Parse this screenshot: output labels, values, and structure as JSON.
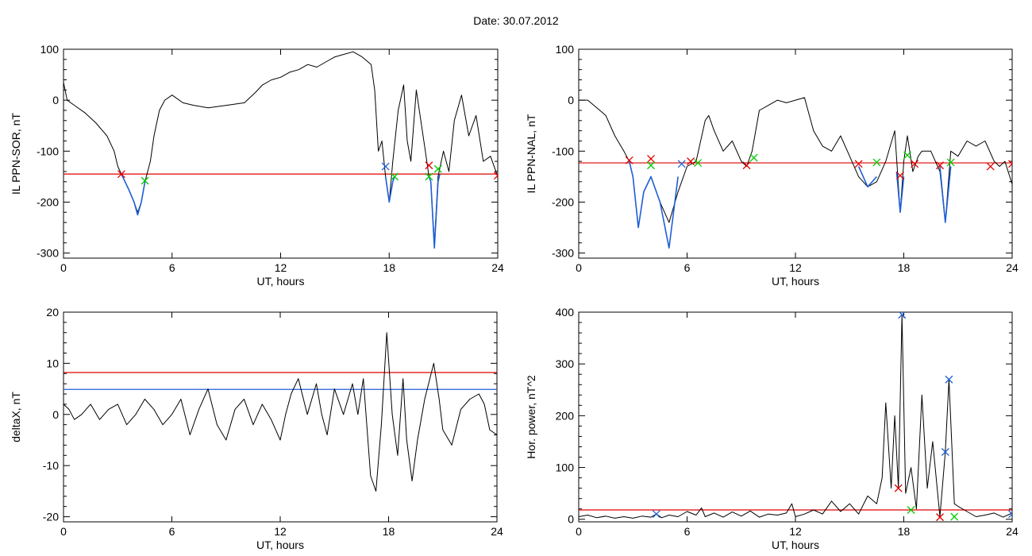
{
  "page_title": "Date:  30.07.2012",
  "chart_data": [
    {
      "type": "line",
      "id": "sor",
      "xlabel": "UT, hours",
      "ylabel": "IL PPN-SOR, nT",
      "xlim": [
        0,
        24
      ],
      "ylim": [
        -310,
        100
      ],
      "xticks": [
        0,
        6,
        12,
        18,
        24
      ],
      "yticks": [
        -300,
        -200,
        -100,
        0,
        100
      ],
      "grid": false,
      "series": [
        {
          "color": "#000000",
          "x": [
            0,
            0.2,
            0.6,
            1.2,
            1.8,
            2.4,
            2.8,
            3.0,
            3.2,
            3.6,
            3.9,
            4.1,
            4.3,
            4.5,
            4.8,
            5.0,
            5.3,
            5.6,
            6.0,
            6.6,
            7.2,
            8.0,
            9.0,
            10.0,
            10.6,
            11.0,
            11.5,
            12.0,
            12.5,
            13.0,
            13.5,
            14.0,
            14.5,
            15.0,
            15.5,
            16.0,
            16.5,
            17.0,
            17.2,
            17.4,
            17.6,
            17.8,
            18.0,
            18.2,
            18.5,
            18.8,
            19.0,
            19.2,
            19.5,
            20.0,
            20.2,
            20.3,
            20.5,
            20.7,
            21.0,
            21.3,
            21.6,
            22.0,
            22.4,
            22.8,
            23.2,
            23.6,
            24.0
          ],
          "y": [
            35,
            0,
            -10,
            -25,
            -45,
            -70,
            -100,
            -130,
            -145,
            -175,
            -200,
            -220,
            -200,
            -160,
            -120,
            -70,
            -20,
            0,
            10,
            -5,
            -10,
            -15,
            -10,
            -5,
            15,
            30,
            40,
            45,
            55,
            60,
            70,
            65,
            75,
            85,
            90,
            95,
            85,
            70,
            20,
            -100,
            -80,
            -150,
            -200,
            -120,
            -20,
            30,
            -80,
            -120,
            20,
            -100,
            -150,
            -160,
            -280,
            -150,
            -100,
            -140,
            -40,
            10,
            -70,
            -30,
            -120,
            -110,
            -150
          ]
        },
        {
          "color": "#1f5fd6",
          "x": [
            3.2,
            3.6,
            3.9,
            4.1,
            4.3,
            4.5
          ],
          "y": [
            -145,
            -175,
            -200,
            -225,
            -200,
            -160
          ]
        },
        {
          "color": "#1f5fd6",
          "x": [
            17.8,
            18.0,
            18.2,
            18.3
          ],
          "y": [
            -150,
            -200,
            -160,
            -150
          ]
        },
        {
          "color": "#1f5fd6",
          "x": [
            20.2,
            20.3,
            20.5,
            20.7,
            20.8
          ],
          "y": [
            -150,
            -160,
            -290,
            -160,
            -145
          ]
        }
      ],
      "hlines": [
        {
          "y": -145,
          "color": "#e00000"
        }
      ],
      "markers": [
        {
          "x": 3.2,
          "y": -145,
          "color": "#e00000"
        },
        {
          "x": 4.5,
          "y": -158,
          "color": "#00cc00"
        },
        {
          "x": 17.8,
          "y": -130,
          "color": "#1f5fd6"
        },
        {
          "x": 18.3,
          "y": -150,
          "color": "#00cc00"
        },
        {
          "x": 20.2,
          "y": -128,
          "color": "#e00000"
        },
        {
          "x": 20.2,
          "y": -150,
          "color": "#00cc00"
        },
        {
          "x": 20.7,
          "y": -135,
          "color": "#00cc00"
        },
        {
          "x": 24.0,
          "y": -148,
          "color": "#e00000"
        }
      ]
    },
    {
      "type": "line",
      "id": "nal",
      "xlabel": "UT, hours",
      "ylabel": "IL PPN-NAL, nT",
      "xlim": [
        0,
        24
      ],
      "ylim": [
        -310,
        100
      ],
      "xticks": [
        0,
        6,
        12,
        18,
        24
      ],
      "yticks": [
        -300,
        -200,
        -100,
        0,
        100
      ],
      "grid": false,
      "series": [
        {
          "color": "#000000",
          "x": [
            0,
            0.5,
            1.0,
            1.5,
            2.0,
            2.5,
            2.8,
            3.0,
            3.3,
            3.6,
            4.0,
            4.5,
            5.0,
            5.5,
            6.0,
            6.5,
            7.0,
            7.2,
            7.5,
            8.0,
            8.5,
            9.0,
            9.3,
            9.6,
            10.0,
            10.5,
            11.0,
            11.5,
            12.0,
            12.5,
            13.0,
            13.5,
            14.0,
            14.5,
            15.0,
            15.5,
            16.0,
            16.5,
            17.0,
            17.5,
            17.8,
            18.0,
            18.2,
            18.5,
            18.8,
            19.0,
            19.5,
            20.0,
            20.3,
            20.6,
            21.0,
            21.5,
            22.0,
            22.5,
            23.0,
            23.3,
            23.6,
            24.0
          ],
          "y": [
            0,
            0,
            -15,
            -30,
            -70,
            -100,
            -120,
            -150,
            -250,
            -180,
            -150,
            -200,
            -240,
            -180,
            -130,
            -120,
            -40,
            -30,
            -60,
            -100,
            -80,
            -120,
            -130,
            -100,
            -20,
            -10,
            0,
            -5,
            0,
            5,
            -60,
            -90,
            -100,
            -70,
            -110,
            -150,
            -170,
            -160,
            -120,
            -60,
            -220,
            -120,
            -70,
            -140,
            -110,
            -100,
            -100,
            -140,
            -240,
            -100,
            -110,
            -80,
            -90,
            -80,
            -120,
            -130,
            -120,
            -165
          ]
        },
        {
          "color": "#1f5fd6",
          "x": [
            2.8,
            3.0,
            3.3,
            3.6,
            4.0,
            4.5,
            5.0,
            5.5
          ],
          "y": [
            -120,
            -150,
            -250,
            -180,
            -150,
            -200,
            -290,
            -150
          ]
        },
        {
          "color": "#1f5fd6",
          "x": [
            15.5,
            16.0,
            16.5
          ],
          "y": [
            -130,
            -170,
            -150
          ]
        },
        {
          "color": "#1f5fd6",
          "x": [
            17.6,
            17.8,
            18.0
          ],
          "y": [
            -140,
            -220,
            -150
          ]
        },
        {
          "color": "#1f5fd6",
          "x": [
            20.0,
            20.3,
            20.6
          ],
          "y": [
            -130,
            -240,
            -130
          ]
        }
      ],
      "hlines": [
        {
          "y": -123,
          "color": "#e00000"
        }
      ],
      "markers": [
        {
          "x": 2.8,
          "y": -118,
          "color": "#e00000"
        },
        {
          "x": 4.0,
          "y": -115,
          "color": "#e00000"
        },
        {
          "x": 4.0,
          "y": -128,
          "color": "#00cc00"
        },
        {
          "x": 5.7,
          "y": -125,
          "color": "#1f5fd6"
        },
        {
          "x": 6.2,
          "y": -120,
          "color": "#e00000"
        },
        {
          "x": 6.6,
          "y": -123,
          "color": "#00cc00"
        },
        {
          "x": 9.3,
          "y": -128,
          "color": "#e00000"
        },
        {
          "x": 9.7,
          "y": -113,
          "color": "#00cc00"
        },
        {
          "x": 15.5,
          "y": -125,
          "color": "#e00000"
        },
        {
          "x": 16.5,
          "y": -122,
          "color": "#00cc00"
        },
        {
          "x": 17.8,
          "y": -148,
          "color": "#e00000"
        },
        {
          "x": 18.2,
          "y": -108,
          "color": "#00cc00"
        },
        {
          "x": 18.6,
          "y": -125,
          "color": "#e00000"
        },
        {
          "x": 20.0,
          "y": -128,
          "color": "#e00000"
        },
        {
          "x": 20.6,
          "y": -122,
          "color": "#00cc00"
        },
        {
          "x": 22.8,
          "y": -130,
          "color": "#e00000"
        },
        {
          "x": 24.0,
          "y": -125,
          "color": "#e00000"
        }
      ]
    },
    {
      "type": "line",
      "id": "deltax",
      "xlabel": "UT, hours",
      "ylabel": "deltaX, nT",
      "xlim": [
        0,
        24
      ],
      "ylim": [
        -21,
        20
      ],
      "xticks": [
        0,
        6,
        12,
        18,
        24
      ],
      "yticks": [
        -20,
        -10,
        0,
        10,
        20
      ],
      "grid": false,
      "series": [
        {
          "color": "#000000",
          "x": [
            0,
            0.3,
            0.6,
            1.0,
            1.5,
            2.0,
            2.5,
            3.0,
            3.5,
            4.0,
            4.5,
            5.0,
            5.5,
            6.0,
            6.5,
            7.0,
            7.5,
            8.0,
            8.5,
            9.0,
            9.5,
            10.0,
            10.5,
            11.0,
            11.5,
            12.0,
            12.3,
            12.6,
            13.0,
            13.5,
            14.0,
            14.3,
            14.6,
            15.0,
            15.5,
            16.0,
            16.3,
            16.6,
            17.0,
            17.3,
            17.6,
            17.9,
            18.2,
            18.5,
            18.8,
            19.0,
            19.3,
            19.6,
            20.0,
            20.5,
            20.8,
            21.0,
            21.5,
            22.0,
            22.5,
            23.0,
            23.3,
            23.6,
            24.0
          ],
          "y": [
            2,
            1,
            -1,
            0,
            2,
            -1,
            1,
            2,
            -2,
            0,
            3,
            1,
            -2,
            0,
            3,
            -4,
            1,
            5,
            -2,
            -5,
            1,
            3,
            -2,
            2,
            -1,
            -5,
            0,
            4,
            7,
            0,
            6,
            0,
            -4,
            5,
            0,
            6,
            0,
            7,
            -12,
            -15,
            -2,
            16,
            0,
            -8,
            7,
            -5,
            -13,
            -5,
            3,
            10,
            3,
            -3,
            -6,
            1,
            3,
            4,
            2,
            -3,
            -4
          ]
        }
      ],
      "hlines": [
        {
          "y": 8.2,
          "color": "#e00000"
        },
        {
          "y": 4.9,
          "color": "#1f5fd6"
        }
      ],
      "markers": []
    },
    {
      "type": "line",
      "id": "power",
      "xlabel": "UT, hours",
      "ylabel": "Hor. power, nT^2",
      "xlim": [
        0,
        24
      ],
      "ylim": [
        -5,
        400
      ],
      "xticks": [
        0,
        6,
        12,
        18,
        24
      ],
      "yticks": [
        0,
        100,
        200,
        300,
        400
      ],
      "grid": false,
      "series": [
        {
          "color": "#000000",
          "x": [
            0,
            0.5,
            1.0,
            1.5,
            2.0,
            2.5,
            3.0,
            3.5,
            4.0,
            4.3,
            4.6,
            5.0,
            5.5,
            6.0,
            6.5,
            6.8,
            7.0,
            7.5,
            8.0,
            8.5,
            9.0,
            9.5,
            10.0,
            10.5,
            11.0,
            11.5,
            11.8,
            12.0,
            12.5,
            13.0,
            13.5,
            14.0,
            14.5,
            15.0,
            15.5,
            16.0,
            16.5,
            16.8,
            17.0,
            17.3,
            17.5,
            17.7,
            17.9,
            18.1,
            18.4,
            18.7,
            19.0,
            19.3,
            19.6,
            20.0,
            20.3,
            20.5,
            20.8,
            21.0,
            21.5,
            22.0,
            22.5,
            23.0,
            23.5,
            24.0
          ],
          "y": [
            5,
            8,
            3,
            6,
            2,
            5,
            2,
            6,
            4,
            10,
            3,
            8,
            5,
            15,
            8,
            22,
            5,
            12,
            4,
            14,
            6,
            16,
            4,
            10,
            8,
            12,
            30,
            5,
            10,
            18,
            10,
            35,
            15,
            30,
            10,
            45,
            30,
            80,
            225,
            60,
            200,
            60,
            395,
            50,
            100,
            20,
            240,
            60,
            150,
            5,
            130,
            270,
            30,
            25,
            15,
            5,
            8,
            12,
            4,
            12
          ]
        }
      ],
      "hlines": [
        {
          "y": 18,
          "color": "#e00000"
        }
      ],
      "markers": [
        {
          "x": 4.3,
          "y": 10,
          "color": "#1f5fd6"
        },
        {
          "x": 17.7,
          "y": 60,
          "color": "#e00000"
        },
        {
          "x": 17.9,
          "y": 395,
          "color": "#1f5fd6"
        },
        {
          "x": 18.4,
          "y": 18,
          "color": "#00cc00"
        },
        {
          "x": 20.0,
          "y": 4,
          "color": "#e00000"
        },
        {
          "x": 20.3,
          "y": 130,
          "color": "#1f5fd6"
        },
        {
          "x": 20.5,
          "y": 270,
          "color": "#1f5fd6"
        },
        {
          "x": 20.8,
          "y": 5,
          "color": "#00cc00"
        },
        {
          "x": 24.0,
          "y": 10,
          "color": "#1f5fd6"
        }
      ]
    }
  ]
}
